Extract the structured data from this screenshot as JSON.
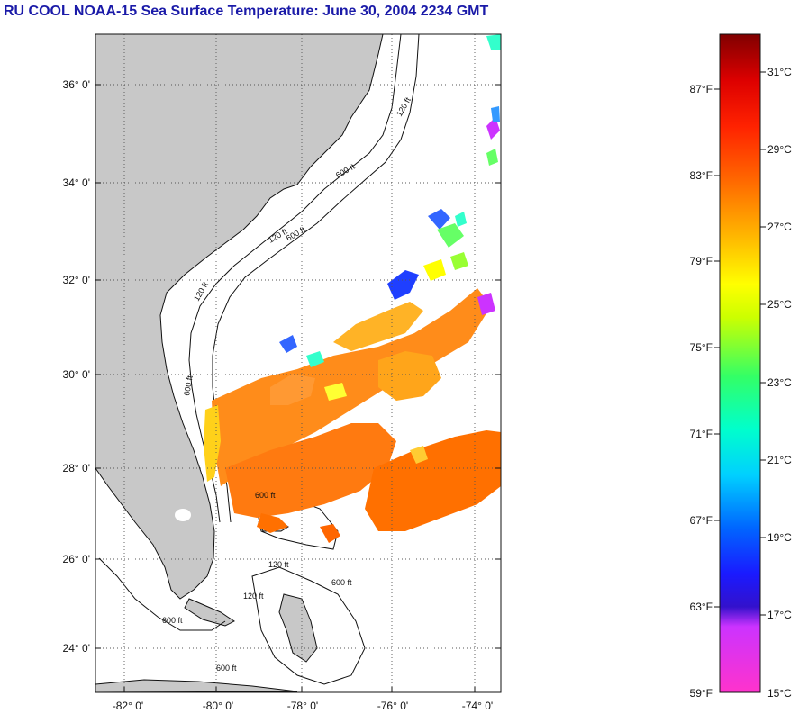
{
  "title": "RU COOL  NOAA-15  Sea Surface Temperature:  June 30, 2004 2234 GMT",
  "map": {
    "lat_ticks": [
      "36° 0'",
      "34° 0'",
      "32° 0'",
      "30° 0'",
      "28° 0'",
      "26° 0'",
      "24° 0'"
    ],
    "lon_ticks": [
      "-82° 0'",
      "-80° 0'",
      "-78° 0'",
      "-76° 0'",
      "-74° 0'"
    ],
    "contour_labels": [
      "120 ft",
      "600 ft",
      "120 ft",
      "600 ft",
      "120 ft",
      "600 ft",
      "600 ft",
      "120 ft",
      "600 ft",
      "120 ft",
      "600 ft",
      "600 ft"
    ]
  },
  "colorbar": {
    "fahrenheit": [
      "87°F",
      "83°F",
      "79°F",
      "75°F",
      "71°F",
      "67°F",
      "63°F",
      "59°F"
    ],
    "celsius": [
      "31°C",
      "29°C",
      "27°C",
      "25°C",
      "23°C",
      "21°C",
      "19°C",
      "17°C",
      "15°C"
    ],
    "colors": [
      "#ff33cc",
      "#9933ff",
      "#1a1aff",
      "#0080ff",
      "#00e5ff",
      "#00ff99",
      "#66ff33",
      "#ffff00",
      "#ffcc00",
      "#ff8000",
      "#ff3300",
      "#ff0000",
      "#cc0000",
      "#800000"
    ]
  }
}
